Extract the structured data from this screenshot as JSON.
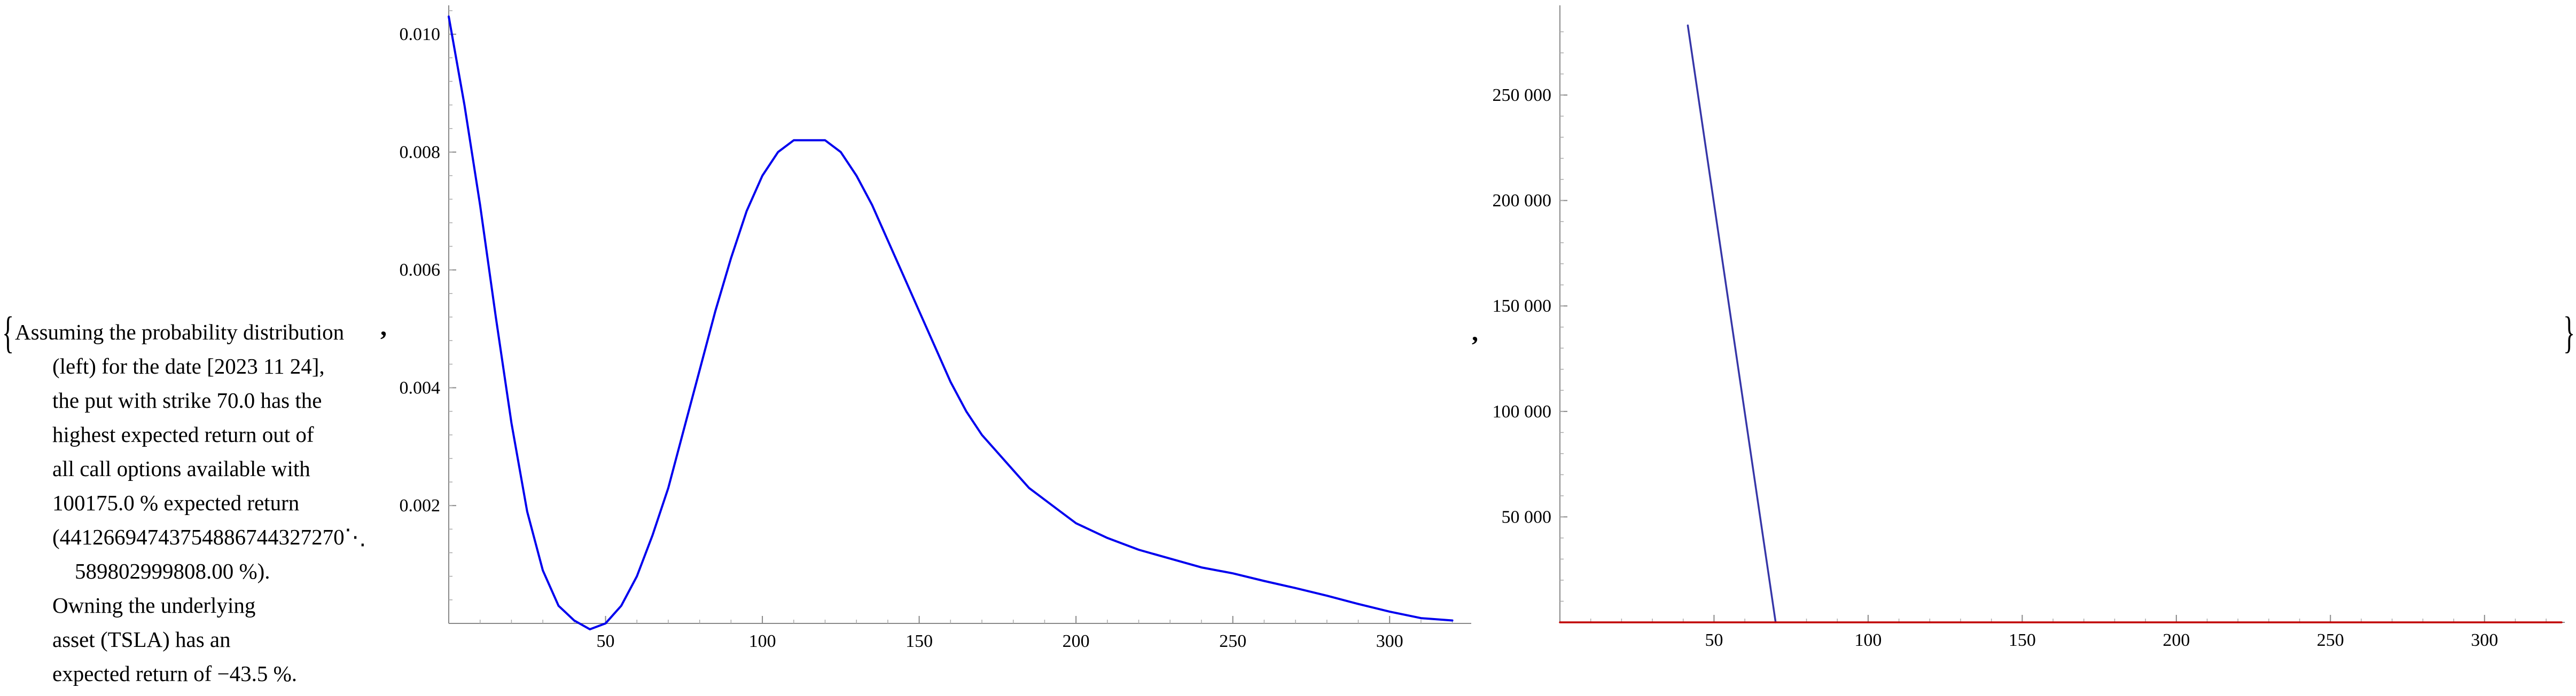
{
  "output": {
    "open_brace": "{",
    "close_brace": "}",
    "separator": ",",
    "description_lines": [
      "Assuming the probability distribution",
      "(left) for the date [2023 11 24],",
      "the put with strike 70.0 has the",
      "highest expected return out of",
      "all call options available with",
      "100175.0 % expected return",
      "(44126694743754886744327270⋱",
      "589802999808.00 %).",
      "Owning the underlying",
      "asset (TSLA) has an",
      "expected return of −43.5 %."
    ]
  },
  "chart_data": [
    {
      "type": "line",
      "title": "",
      "xlabel": "",
      "ylabel": "",
      "xlim": [
        0,
        325
      ],
      "ylim": [
        0,
        0.0104
      ],
      "x_ticks": [
        50,
        100,
        150,
        200,
        250,
        300
      ],
      "y_ticks": [
        0.002,
        0.004,
        0.006,
        0.008,
        0.01
      ],
      "x_tick_labels": [
        "50",
        "100",
        "150",
        "200",
        "250",
        "300"
      ],
      "y_tick_labels": [
        "0.002",
        "0.004",
        "0.006",
        "0.008",
        "0.010"
      ],
      "grid": false,
      "series": [
        {
          "color": "#0000ee",
          "x": [
            0,
            5,
            10,
            15,
            20,
            25,
            30,
            35,
            40,
            45,
            50,
            55,
            60,
            65,
            70,
            75,
            80,
            85,
            90,
            95,
            100,
            105,
            110,
            115,
            120,
            125,
            130,
            135,
            140,
            145,
            150,
            155,
            160,
            165,
            170,
            175,
            180,
            185,
            190,
            195,
            200,
            210,
            220,
            230,
            240,
            250,
            260,
            270,
            280,
            290,
            300,
            310,
            320
          ],
          "y": [
            0.0103,
            0.0088,
            0.0071,
            0.0052,
            0.0034,
            0.0019,
            0.0009,
            0.0003,
            5e-05,
            -0.0001,
            0.0,
            0.0003,
            0.0008,
            0.0015,
            0.0023,
            0.0033,
            0.0043,
            0.0053,
            0.0062,
            0.007,
            0.0076,
            0.008,
            0.0082,
            0.0082,
            0.0082,
            0.008,
            0.0076,
            0.0071,
            0.0065,
            0.0059,
            0.0053,
            0.0047,
            0.0041,
            0.0036,
            0.0032,
            0.0029,
            0.0026,
            0.0023,
            0.0021,
            0.0019,
            0.0017,
            0.00145,
            0.00125,
            0.0011,
            0.00095,
            0.00085,
            0.00072,
            0.0006,
            0.00047,
            0.00033,
            0.0002,
            9e-05,
            5e-05
          ]
        }
      ]
    },
    {
      "type": "line",
      "title": "",
      "xlabel": "",
      "ylabel": "",
      "xlim": [
        0,
        325
      ],
      "ylim": [
        0,
        290000
      ],
      "x_ticks": [
        50,
        100,
        150,
        200,
        250,
        300
      ],
      "y_ticks": [
        50000,
        100000,
        150000,
        200000,
        250000
      ],
      "x_tick_labels": [
        "50",
        "100",
        "150",
        "200",
        "250",
        "300"
      ],
      "y_tick_labels": [
        "50 000",
        "100 000",
        "150 000",
        "200 000",
        "250 000"
      ],
      "grid": false,
      "series": [
        {
          "color": "#3636a8",
          "x": [
            41.5,
            70
          ],
          "y": [
            283000,
            0
          ]
        },
        {
          "color": "#c00000",
          "x": [
            0,
            325
          ],
          "y": [
            0,
            0
          ]
        }
      ]
    }
  ]
}
